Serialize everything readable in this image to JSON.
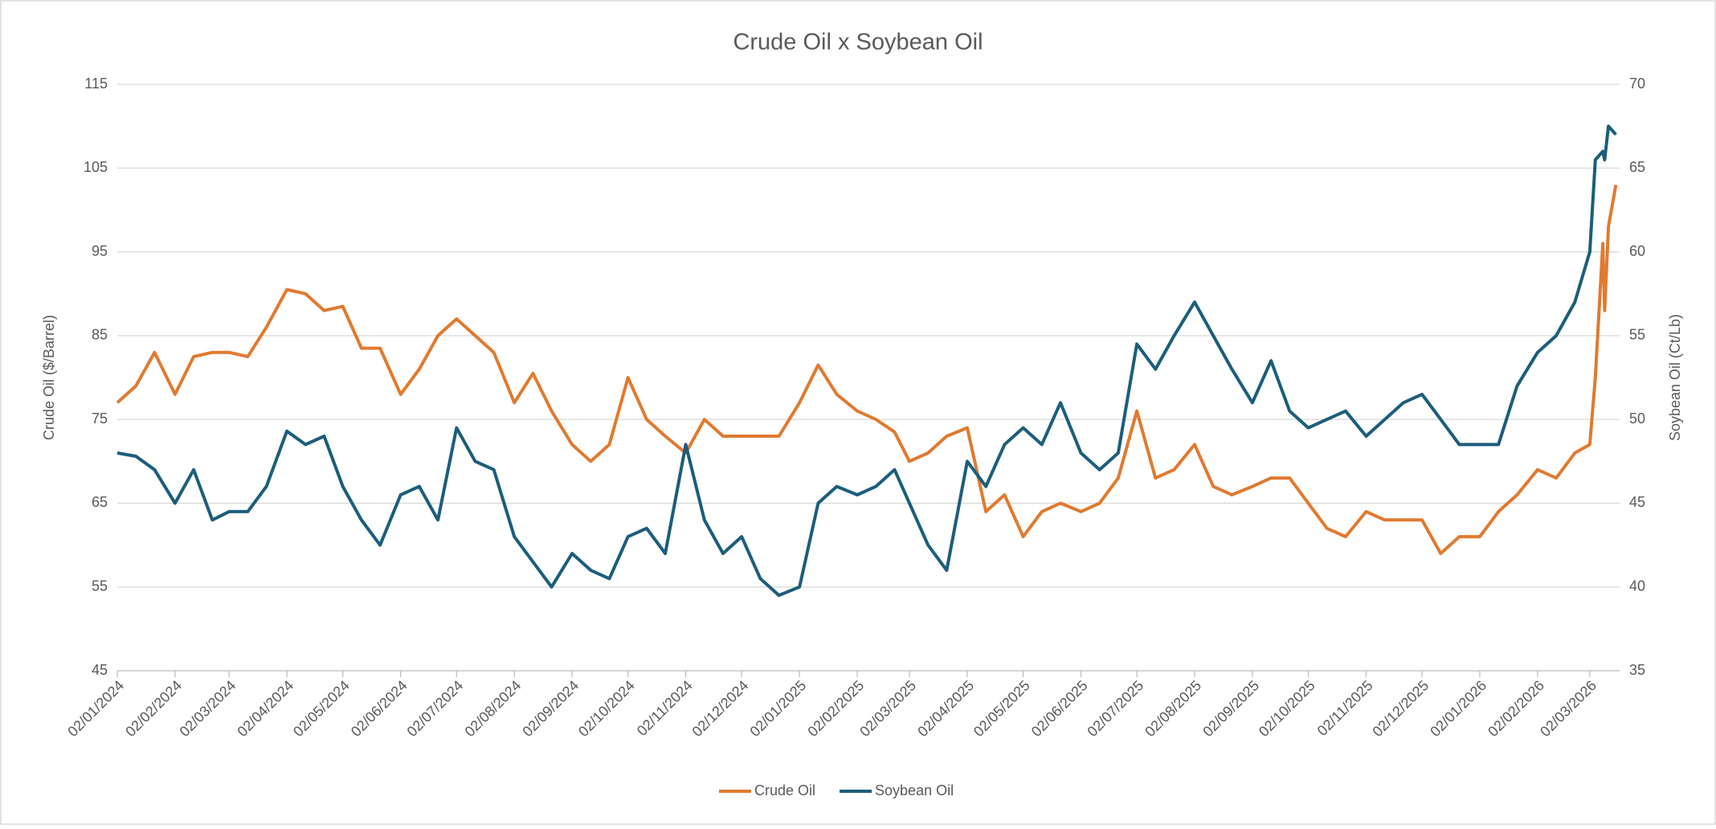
{
  "chart_data": {
    "type": "line",
    "title": "Crude Oil x Soybean Oil",
    "y_label": "Crude Oil ($/Barrel)",
    "y2_label": "Soybean Oil (Ct/Lb)",
    "x": [
      "02/01/2024",
      "12/01/2024",
      "22/01/2024",
      "02/02/2024",
      "12/02/2024",
      "22/02/2024",
      "02/03/2024",
      "12/03/2024",
      "22/03/2024",
      "02/04/2024",
      "12/04/2024",
      "22/04/2024",
      "02/05/2024",
      "12/05/2024",
      "22/05/2024",
      "02/06/2024",
      "12/06/2024",
      "22/06/2024",
      "02/07/2024",
      "12/07/2024",
      "22/07/2024",
      "02/08/2024",
      "12/08/2024",
      "22/08/2024",
      "02/09/2024",
      "12/09/2024",
      "22/09/2024",
      "02/10/2024",
      "12/10/2024",
      "22/10/2024",
      "02/11/2024",
      "12/11/2024",
      "22/11/2024",
      "02/12/2024",
      "12/12/2024",
      "22/12/2024",
      "02/01/2025",
      "12/01/2025",
      "22/01/2025",
      "02/02/2025",
      "12/02/2025",
      "22/02/2025",
      "02/03/2025",
      "12/03/2025",
      "22/03/2025",
      "02/04/2025",
      "12/04/2025",
      "22/04/2025",
      "02/05/2025",
      "12/05/2025",
      "22/05/2025",
      "02/06/2025",
      "12/06/2025",
      "22/06/2025",
      "02/07/2025",
      "12/07/2025",
      "22/07/2025",
      "02/08/2025",
      "12/08/2025",
      "22/08/2025",
      "02/09/2025",
      "12/09/2025",
      "22/09/2025",
      "02/10/2025",
      "12/10/2025",
      "22/10/2025",
      "02/11/2025",
      "12/11/2025",
      "22/11/2025",
      "02/12/2025",
      "12/12/2025",
      "22/12/2025",
      "02/01/2026",
      "12/01/2026",
      "22/01/2026",
      "02/02/2026",
      "12/02/2026",
      "22/02/2026",
      "02/03/2026",
      "05/03/2026",
      "09/03/2026",
      "10/03/2026",
      "12/03/2026",
      "16/03/2026"
    ],
    "series": [
      {
        "name": "Crude Oil",
        "color": "#e07a30",
        "axis": "y",
        "values": [
          77,
          79,
          83,
          78,
          82.5,
          83,
          83,
          82.5,
          86,
          90.5,
          90,
          88,
          88.5,
          83.5,
          83.5,
          78,
          81,
          85,
          87,
          85,
          83,
          77,
          80.5,
          76,
          72,
          70,
          72,
          80,
          75,
          73,
          71,
          75,
          73,
          73,
          73,
          73,
          77,
          81.5,
          78,
          76,
          75,
          73.5,
          70,
          71,
          73,
          74,
          64,
          66,
          61,
          64,
          65,
          64,
          65,
          68,
          76,
          68,
          69,
          72,
          67,
          66,
          67,
          68,
          68,
          65,
          62,
          61,
          64,
          63,
          63,
          63,
          59,
          61,
          61,
          64,
          66,
          69,
          68,
          71,
          72,
          80,
          96,
          88,
          98,
          103
        ]
      },
      {
        "name": "Soybean Oil",
        "color": "#1b5e7b",
        "axis": "y2",
        "values": [
          48,
          47.8,
          47,
          45,
          47,
          44,
          44.5,
          44.5,
          46,
          49.3,
          48.5,
          49,
          46,
          44,
          42.5,
          45.5,
          46,
          44,
          49.5,
          47.5,
          47,
          43,
          41.5,
          40,
          42,
          41,
          40.5,
          43,
          43.5,
          42,
          48.5,
          44,
          42,
          43,
          40.5,
          39.5,
          40,
          45,
          46,
          45.5,
          46,
          47,
          45,
          42.5,
          41,
          47.5,
          46,
          48.5,
          49.5,
          48.5,
          51,
          48,
          47,
          48,
          54.5,
          53,
          55,
          57,
          55,
          53,
          51,
          53.5,
          50.5,
          49.5,
          50,
          50.5,
          49,
          50,
          51,
          51.5,
          50,
          48.5,
          48.5,
          48.5,
          52,
          54,
          55,
          57,
          60,
          65.5,
          66,
          65.5,
          67.5,
          67
        ]
      }
    ],
    "xlim": [
      "02/01/2024",
      "18/03/2026"
    ],
    "xticks": [
      "02/01/2024",
      "02/02/2024",
      "02/03/2024",
      "02/04/2024",
      "02/05/2024",
      "02/06/2024",
      "02/07/2024",
      "02/08/2024",
      "02/09/2024",
      "02/10/2024",
      "02/11/2024",
      "02/12/2024",
      "02/01/2025",
      "02/02/2025",
      "02/03/2025",
      "02/04/2025",
      "02/05/2025",
      "02/06/2025",
      "02/07/2025",
      "02/08/2025",
      "02/09/2025",
      "02/10/2025",
      "02/11/2025",
      "02/12/2025",
      "02/01/2026",
      "02/02/2026",
      "02/03/2026"
    ],
    "ylim": [
      45,
      115
    ],
    "yticks": [
      45,
      55,
      65,
      75,
      85,
      95,
      105,
      115
    ],
    "y2lim": [
      35,
      70
    ],
    "y2ticks": [
      35,
      40,
      45,
      50,
      55,
      60,
      65,
      70
    ],
    "grid": true,
    "legend": "bottom"
  }
}
